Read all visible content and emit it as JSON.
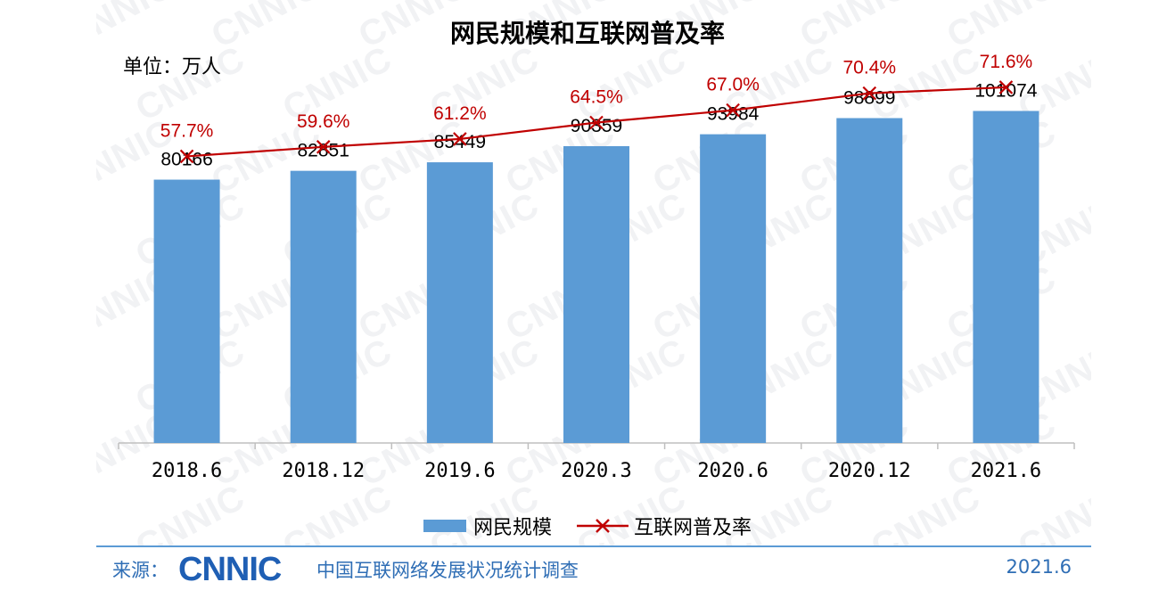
{
  "watermark_text": "CNNIC",
  "unit_label": "单位：万人",
  "chart_data": {
    "type": "bar",
    "title": "网民规模和互联网普及率",
    "categories": [
      "2018.6",
      "2018.12",
      "2019.6",
      "2020.3",
      "2020.6",
      "2020.12",
      "2021.6"
    ],
    "series": [
      {
        "name": "网民规模",
        "type": "bar",
        "color": "#5b9bd5",
        "values": [
          80166,
          82851,
          85449,
          90359,
          93984,
          98899,
          101074
        ],
        "labels": [
          "80166",
          "82851",
          "85449",
          "90359",
          "93984",
          "98899",
          "101074"
        ]
      },
      {
        "name": "互联网普及率",
        "type": "line",
        "marker": "x",
        "color": "#c00000",
        "values": [
          57.7,
          59.6,
          61.2,
          64.5,
          67.0,
          70.4,
          71.6
        ],
        "labels": [
          "57.7%",
          "59.6%",
          "61.2%",
          "64.5%",
          "67.0%",
          "70.4%",
          "71.6%"
        ]
      }
    ],
    "bar_ylim": [
      0,
      124000
    ],
    "line_ylim": [
      0,
      82
    ],
    "grid": false,
    "legend": "bottom"
  },
  "footer": {
    "source_label": "来源：",
    "logo_text": "CNNIC",
    "org_text": "中国互联网络发展状况统计调查",
    "date_text": "2021.6"
  }
}
